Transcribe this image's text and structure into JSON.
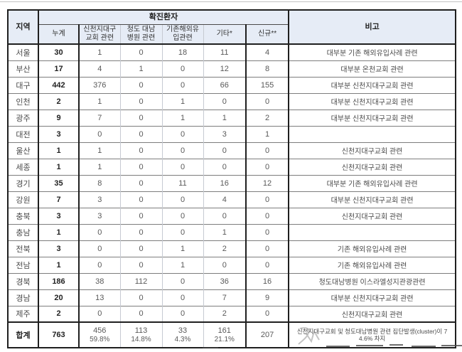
{
  "table": {
    "header": {
      "region": "지역",
      "confirmed_group": "확진환자",
      "remarks": "비고",
      "columns": [
        "누계",
        "신천지대구\n교회 관련",
        "청도 대남\n병원 관련",
        "기존해외유\n입관련",
        "기타*",
        "신규**"
      ]
    },
    "rows": [
      {
        "region": "서울",
        "total": "30",
        "shincheonji": "1",
        "cheongdo": "0",
        "overseas": "18",
        "etc": "11",
        "new": "4",
        "remark": "대부분 기존 해외유입사례 관련"
      },
      {
        "region": "부산",
        "total": "17",
        "shincheonji": "4",
        "cheongdo": "1",
        "overseas": "0",
        "etc": "12",
        "new": "8",
        "remark": "대부분 온천교회 관련"
      },
      {
        "region": "대구",
        "total": "442",
        "shincheonji": "376",
        "cheongdo": "0",
        "overseas": "0",
        "etc": "66",
        "new": "155",
        "remark": "대부분 신천지대구교회 관련"
      },
      {
        "region": "인천",
        "total": "2",
        "shincheonji": "1",
        "cheongdo": "0",
        "overseas": "1",
        "etc": "0",
        "new": "0",
        "remark": "대부분 신천지대구교회 관련"
      },
      {
        "region": "광주",
        "total": "9",
        "shincheonji": "7",
        "cheongdo": "0",
        "overseas": "1",
        "etc": "1",
        "new": "2",
        "remark": "대부분 신천지대구교회 관련"
      },
      {
        "region": "대전",
        "total": "3",
        "shincheonji": "0",
        "cheongdo": "0",
        "overseas": "0",
        "etc": "3",
        "new": "1",
        "remark": ""
      },
      {
        "region": "울산",
        "total": "1",
        "shincheonji": "1",
        "cheongdo": "0",
        "overseas": "0",
        "etc": "0",
        "new": "0",
        "remark": "신천지대구교회 관련"
      },
      {
        "region": "세종",
        "total": "1",
        "shincheonji": "1",
        "cheongdo": "0",
        "overseas": "0",
        "etc": "0",
        "new": "0",
        "remark": "신천지대구교회 관련"
      },
      {
        "region": "경기",
        "total": "35",
        "shincheonji": "8",
        "cheongdo": "0",
        "overseas": "11",
        "etc": "16",
        "new": "12",
        "remark": "대부분 기존 해외유입사례 관련"
      },
      {
        "region": "강원",
        "total": "7",
        "shincheonji": "3",
        "cheongdo": "0",
        "overseas": "0",
        "etc": "4",
        "new": "0",
        "remark": "대부분 신천지대구교회 관련"
      },
      {
        "region": "충북",
        "total": "3",
        "shincheonji": "3",
        "cheongdo": "0",
        "overseas": "0",
        "etc": "0",
        "new": "0",
        "remark": "신천지대구교회 관련"
      },
      {
        "region": "충남",
        "total": "1",
        "shincheonji": "0",
        "cheongdo": "0",
        "overseas": "0",
        "etc": "1",
        "new": "0",
        "remark": ""
      },
      {
        "region": "전북",
        "total": "3",
        "shincheonji": "0",
        "cheongdo": "0",
        "overseas": "1",
        "etc": "2",
        "new": "0",
        "remark": "기존 해외유입사례 관련"
      },
      {
        "region": "전남",
        "total": "1",
        "shincheonji": "0",
        "cheongdo": "0",
        "overseas": "1",
        "etc": "0",
        "new": "0",
        "remark": "기존 해외유입사례 관련"
      },
      {
        "region": "경북",
        "total": "186",
        "shincheonji": "38",
        "cheongdo": "112",
        "overseas": "0",
        "etc": "36",
        "new": "16",
        "remark": "청도대남병원 이스라엘성지관광관련"
      },
      {
        "region": "경남",
        "total": "20",
        "shincheonji": "13",
        "cheongdo": "0",
        "overseas": "0",
        "etc": "7",
        "new": "9",
        "remark": "대부분 신천지대구교회 관련"
      },
      {
        "region": "제주",
        "total": "2",
        "shincheonji": "0",
        "cheongdo": "0",
        "overseas": "0",
        "etc": "2",
        "new": "0",
        "remark": "신천지대구교회 관련"
      }
    ],
    "footer": {
      "region": "합계",
      "total": "763",
      "shincheonji": "456",
      "shincheonji_pct": "59.8%",
      "cheongdo": "113",
      "cheongdo_pct": "14.8%",
      "overseas": "33",
      "overseas_pct": "4.3%",
      "etc": "161",
      "etc_pct": "21.1%",
      "new": "207",
      "remark_line1": "신천지대구교회 및 청도대남병원 관련 집단발생(cluster)이 7",
      "remark_line2": "4.6% 차지"
    }
  },
  "colors": {
    "header_bg": "#e6ecf6",
    "border_dark": "#1f1f1f",
    "row_line": "#7d7d7d",
    "thin_vertical": "#c6cad2",
    "number_text": "#595959",
    "dark_text": "#222222"
  }
}
